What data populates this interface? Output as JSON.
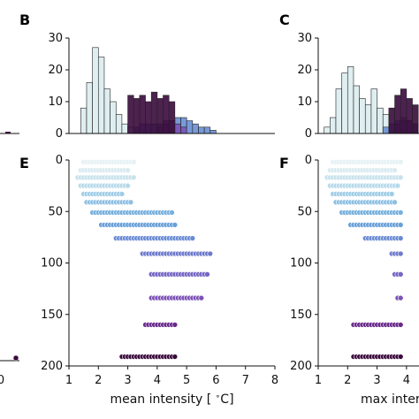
{
  "panels": {
    "B": "B",
    "C": "C",
    "E": "E",
    "F": "F"
  },
  "colors": {
    "light": "#dfeef0",
    "blue": "#6a8fd3",
    "purple": "#7b52b5",
    "dark": "#3a0a3c"
  },
  "chart_data": [
    {
      "id": "B",
      "type": "bar",
      "xlabel": "",
      "ylabel": "",
      "xlim": [
        1,
        8
      ],
      "ylim": [
        0,
        30
      ],
      "yticks": [
        "0",
        "10",
        "20",
        "30"
      ],
      "bin_width": 0.2,
      "series": [
        {
          "color": "#dfeef0",
          "x": [
            1.4,
            1.6,
            1.8,
            2.0,
            2.2,
            2.4,
            2.6,
            2.8,
            3.0,
            3.2
          ],
          "values": [
            8,
            16,
            27,
            24,
            14,
            10,
            6,
            3,
            2,
            1
          ]
        },
        {
          "color": "#6a8fd3",
          "x": [
            3.2,
            3.4,
            3.6,
            3.8,
            4.0,
            4.2,
            4.4,
            4.6,
            4.8,
            5.0,
            5.2,
            5.4,
            5.6,
            5.8
          ],
          "values": [
            2,
            3,
            3,
            3,
            3,
            4,
            4,
            5,
            5,
            4,
            3,
            2,
            2,
            1
          ]
        },
        {
          "color": "#7b52b5",
          "x": [
            4.0,
            4.2,
            4.4,
            4.6,
            4.8
          ],
          "values": [
            2,
            3,
            4,
            3,
            2
          ]
        },
        {
          "color": "#3a0a3c",
          "x": [
            3.0,
            3.2,
            3.4,
            3.6,
            3.8,
            4.0,
            4.2,
            4.4
          ],
          "values": [
            12,
            11,
            12,
            10,
            13,
            11,
            12,
            10
          ]
        }
      ]
    },
    {
      "id": "C",
      "type": "bar",
      "xlabel": "",
      "ylabel": "",
      "xlim": [
        1,
        8
      ],
      "ylim": [
        0,
        30
      ],
      "yticks": [
        "0",
        "10",
        "20",
        "30"
      ],
      "bin_width": 0.2,
      "series": [
        {
          "color": "#dfeef0",
          "x": [
            1.2,
            1.4,
            1.6,
            1.8,
            2.0,
            2.2,
            2.4,
            2.6,
            2.8,
            3.0,
            3.2,
            3.4
          ],
          "values": [
            2,
            5,
            14,
            19,
            21,
            15,
            11,
            9,
            14,
            8,
            6,
            3
          ]
        },
        {
          "color": "#6a8fd3",
          "x": [
            3.2,
            3.4,
            3.6,
            3.8,
            4.0,
            4.2
          ],
          "values": [
            2,
            3,
            4,
            5,
            4,
            3
          ]
        },
        {
          "color": "#7b52b5",
          "x": [
            3.6,
            3.8,
            4.0,
            4.2
          ],
          "values": [
            3,
            4,
            4,
            3
          ]
        },
        {
          "color": "#3a0a3c",
          "x": [
            3.4,
            3.6,
            3.8,
            4.0,
            4.2
          ],
          "values": [
            8,
            12,
            14,
            11,
            9
          ]
        }
      ]
    },
    {
      "id": "E",
      "type": "scatter",
      "xlabel": "mean intensity [$^\\circ$C]",
      "ylabel": "",
      "xlim": [
        1,
        8
      ],
      "xticks": [
        "1",
        "2",
        "3",
        "4",
        "5",
        "6",
        "7",
        "8"
      ],
      "ylim": [
        200,
        0
      ],
      "yticks": [
        "0",
        "50",
        "100",
        "150",
        "200"
      ],
      "rows": [
        {
          "y": 2,
          "xmin": 1.5,
          "xmax": 3.2,
          "color": "#e6f1f4"
        },
        {
          "y": 10,
          "xmin": 1.4,
          "xmax": 3.0,
          "color": "#d8eaf0"
        },
        {
          "y": 17,
          "xmin": 1.3,
          "xmax": 3.2,
          "color": "#c8e2ec"
        },
        {
          "y": 25,
          "xmin": 1.4,
          "xmax": 3.0,
          "color": "#b6d9ea"
        },
        {
          "y": 33,
          "xmin": 1.5,
          "xmax": 2.8,
          "color": "#a0cde6"
        },
        {
          "y": 41,
          "xmin": 1.6,
          "xmax": 3.1,
          "color": "#8dbfe2"
        },
        {
          "y": 51,
          "xmin": 1.8,
          "xmax": 4.5,
          "color": "#78b1dd"
        },
        {
          "y": 63,
          "xmin": 2.1,
          "xmax": 4.6,
          "color": "#689fd8"
        },
        {
          "y": 76,
          "xmin": 2.6,
          "xmax": 5.2,
          "color": "#6b8cd4"
        },
        {
          "y": 91,
          "xmin": 3.5,
          "xmax": 5.8,
          "color": "#6e7acc"
        },
        {
          "y": 111,
          "xmin": 3.8,
          "xmax": 5.7,
          "color": "#7666c3"
        },
        {
          "y": 134,
          "xmin": 3.8,
          "xmax": 5.5,
          "color": "#7b52b5"
        },
        {
          "y": 160,
          "xmin": 3.6,
          "xmax": 4.6,
          "color": "#6a2b8c"
        },
        {
          "y": 191,
          "xmin": 2.8,
          "xmax": 4.6,
          "color": "#3a0a3c"
        }
      ]
    },
    {
      "id": "F",
      "type": "scatter",
      "xlabel": "max inter",
      "ylabel": "",
      "xlim": [
        1,
        8
      ],
      "xticks": [
        "1",
        "2",
        "3",
        "4"
      ],
      "ylim": [
        200,
        0
      ],
      "yticks": [
        "0",
        "50",
        "100",
        "150",
        "200"
      ],
      "rows": [
        {
          "y": 2,
          "xmin": 1.5,
          "xmax": 3.8,
          "color": "#e6f1f4"
        },
        {
          "y": 10,
          "xmin": 1.4,
          "xmax": 3.6,
          "color": "#d8eaf0"
        },
        {
          "y": 17,
          "xmin": 1.3,
          "xmax": 3.8,
          "color": "#c8e2ec"
        },
        {
          "y": 25,
          "xmin": 1.4,
          "xmax": 3.7,
          "color": "#b6d9ea"
        },
        {
          "y": 33,
          "xmin": 1.5,
          "xmax": 3.5,
          "color": "#a0cde6"
        },
        {
          "y": 41,
          "xmin": 1.6,
          "xmax": 3.6,
          "color": "#8dbfe2"
        },
        {
          "y": 51,
          "xmin": 1.8,
          "xmax": 3.8,
          "color": "#78b1dd"
        },
        {
          "y": 63,
          "xmin": 2.1,
          "xmax": 3.8,
          "color": "#689fd8"
        },
        {
          "y": 76,
          "xmin": 2.6,
          "xmax": 3.8,
          "color": "#6b8cd4"
        },
        {
          "y": 91,
          "xmin": 3.5,
          "xmax": 3.8,
          "color": "#6e7acc"
        },
        {
          "y": 111,
          "xmin": 3.6,
          "xmax": 3.8,
          "color": "#7666c3"
        },
        {
          "y": 134,
          "xmin": 3.7,
          "xmax": 3.8,
          "color": "#7b52b5"
        },
        {
          "y": 160,
          "xmin": 2.2,
          "xmax": 3.8,
          "color": "#6a2b8c"
        },
        {
          "y": 191,
          "xmin": 2.2,
          "xmax": 3.8,
          "color": "#3a0a3c"
        }
      ]
    },
    {
      "id": "left-partial",
      "type": "scatter",
      "xticks": [
        "0"
      ],
      "points": [
        {
          "y": 190,
          "color": "#3a0a3c"
        }
      ]
    }
  ]
}
